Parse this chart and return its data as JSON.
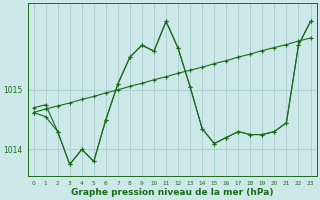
{
  "background_color": "#cce8e8",
  "grid_color": "#aacccc",
  "line_color": "#1a6b1a",
  "xlabel": "Graphe pression niveau de la mer (hPa)",
  "xlabel_fontsize": 6.5,
  "ylabel_ticks": [
    1014,
    1015
  ],
  "xlim": [
    -0.5,
    23.5
  ],
  "ylim": [
    1013.55,
    1016.45
  ],
  "xticks": [
    0,
    1,
    2,
    3,
    4,
    5,
    6,
    7,
    8,
    9,
    10,
    11,
    12,
    13,
    14,
    15,
    16,
    17,
    18,
    19,
    20,
    21,
    22,
    23
  ],
  "series1_x": [
    0,
    1,
    2,
    3,
    4,
    5,
    6,
    7,
    8,
    9,
    10,
    11,
    12,
    13,
    14,
    15,
    16,
    17,
    18,
    19,
    20,
    21,
    22,
    23
  ],
  "series1_y": [
    1014.7,
    1014.75,
    1014.3,
    1013.75,
    1014.0,
    1013.8,
    1014.5,
    1015.1,
    1015.55,
    1015.75,
    1015.65,
    1016.15,
    1015.7,
    1015.05,
    1014.35,
    1014.1,
    1014.2,
    1014.3,
    1014.25,
    1014.25,
    1014.3,
    1014.45,
    1015.75,
    1016.15
  ],
  "series2_x": [
    0,
    1,
    2,
    3,
    4,
    5,
    6,
    7,
    8,
    9,
    10,
    11,
    12,
    13,
    14,
    15,
    16,
    17,
    18,
    19,
    20,
    21,
    22,
    23
  ],
  "series2_y": [
    1014.62,
    1014.68,
    1014.73,
    1014.78,
    1014.84,
    1014.89,
    1014.95,
    1015.0,
    1015.06,
    1015.11,
    1015.17,
    1015.22,
    1015.28,
    1015.33,
    1015.38,
    1015.44,
    1015.49,
    1015.55,
    1015.6,
    1015.66,
    1015.71,
    1015.76,
    1015.82,
    1015.87
  ],
  "series3_x": [
    0,
    1,
    2,
    3,
    4,
    5,
    6,
    7,
    8,
    9,
    10,
    11,
    12,
    13,
    14,
    15,
    16,
    17,
    18,
    19,
    20,
    21,
    22,
    23
  ],
  "series3_y": [
    1014.62,
    1014.55,
    1014.3,
    1013.75,
    1014.0,
    1013.8,
    1014.5,
    1015.1,
    1015.55,
    1015.75,
    1015.65,
    1016.15,
    1015.7,
    1015.05,
    1014.35,
    1014.1,
    1014.2,
    1014.3,
    1014.25,
    1014.25,
    1014.3,
    1014.45,
    1015.75,
    1016.15
  ]
}
